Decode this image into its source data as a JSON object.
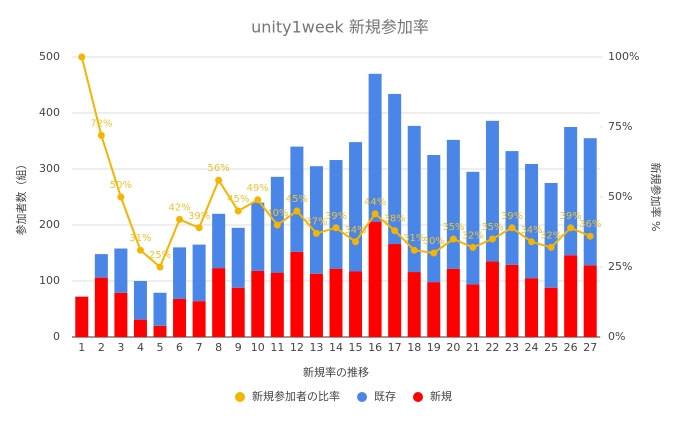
{
  "chart_data": {
    "type": "bar",
    "title": "unity1week 新規参加率",
    "x_label": "新規率の推移",
    "y_label": "参加者数（組）",
    "y2_label": "新規参加率 %",
    "categories": [
      "1",
      "2",
      "3",
      "4",
      "5",
      "6",
      "7",
      "8",
      "9",
      "10",
      "11",
      "12",
      "13",
      "14",
      "15",
      "16",
      "17",
      "18",
      "19",
      "20",
      "21",
      "22",
      "23",
      "24",
      "25",
      "26",
      "27"
    ],
    "ylim": [
      0,
      500
    ],
    "yticks": [
      0,
      100,
      200,
      300,
      400,
      500
    ],
    "y2lim": [
      0,
      100
    ],
    "y2ticks": [
      {
        "value": 0,
        "label": "0%"
      },
      {
        "value": 25,
        "label": "25%"
      },
      {
        "value": 50,
        "label": "50%"
      },
      {
        "value": 75,
        "label": "75%"
      },
      {
        "value": 100,
        "label": "100%"
      }
    ],
    "grid": true,
    "legend": "bottom",
    "series": [
      {
        "name": "新規参加者の比率",
        "type": "line",
        "axis": "y2",
        "color": "#f4b400",
        "values": [
          100,
          72,
          50,
          31,
          25,
          42,
          39,
          56,
          45,
          49,
          40,
          45,
          37,
          39,
          34,
          44,
          38,
          31,
          30,
          35,
          32,
          35,
          39,
          34,
          32,
          39,
          36
        ],
        "value_labels": [
          null,
          "72%",
          "50%",
          "31%",
          "25%",
          "42%",
          "39%",
          "56%",
          "45%",
          "49%",
          "40%",
          "45%",
          "37%",
          "39%",
          "34%",
          "44%",
          "38%",
          "31%",
          "30%",
          "35%",
          "32%",
          "35%",
          "39%",
          "34%",
          "32%",
          "39%",
          "36%"
        ]
      },
      {
        "name": "既存",
        "type": "bar",
        "color": "#4a86e8",
        "values": [
          0,
          42,
          79,
          69,
          59,
          92,
          101,
          97,
          107,
          122,
          171,
          188,
          192,
          194,
          231,
          264,
          268,
          261,
          227,
          230,
          201,
          251,
          203,
          204,
          187,
          229,
          227
        ]
      },
      {
        "name": "新規",
        "type": "bar",
        "color": "#ff0000",
        "values": [
          72,
          106,
          79,
          31,
          20,
          68,
          64,
          123,
          88,
          118,
          115,
          152,
          113,
          122,
          117,
          206,
          166,
          116,
          98,
          122,
          94,
          135,
          129,
          105,
          88,
          146,
          128
        ]
      }
    ]
  }
}
